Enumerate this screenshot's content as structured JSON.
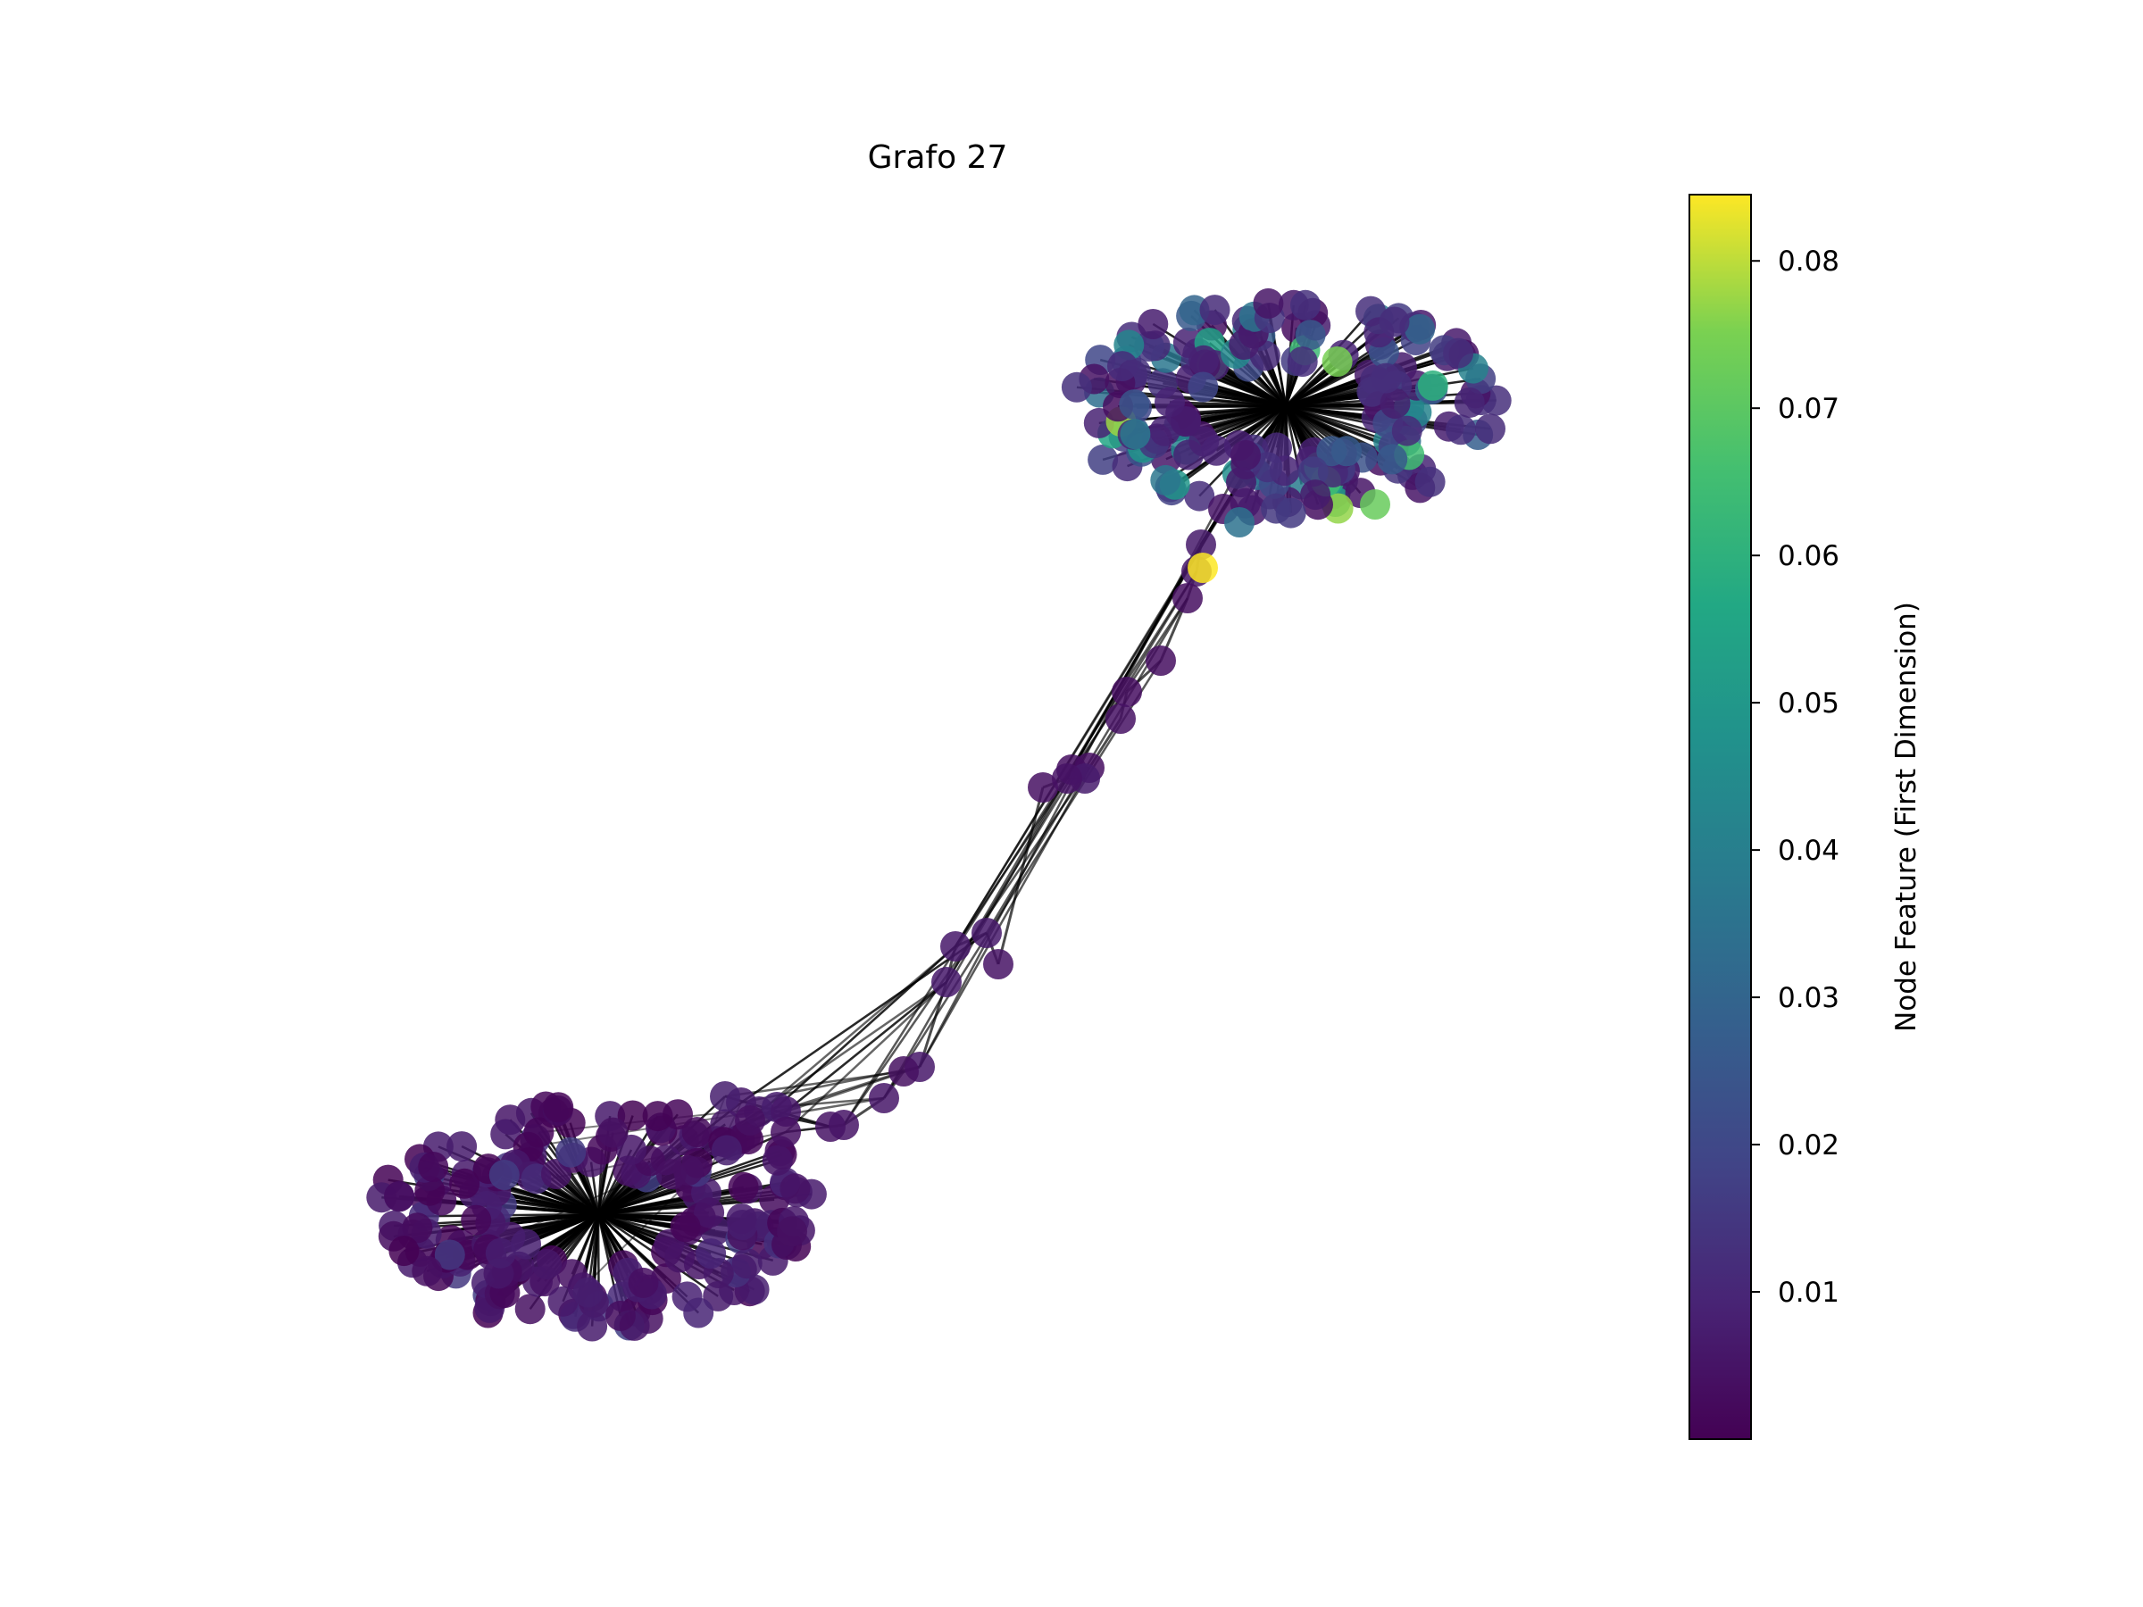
{
  "title": "Grafo 27",
  "colorbar": {
    "label": "Node Feature (First Dimension)",
    "colormap": "viridis",
    "range": [
      0.0,
      0.0845
    ],
    "ticks": [
      {
        "value": 0.01,
        "label": "0.01"
      },
      {
        "value": 0.02,
        "label": "0.02"
      },
      {
        "value": 0.03,
        "label": "0.03"
      },
      {
        "value": 0.04,
        "label": "0.04"
      },
      {
        "value": 0.05,
        "label": "0.05"
      },
      {
        "value": 0.06,
        "label": "0.06"
      },
      {
        "value": 0.07,
        "label": "0.07"
      },
      {
        "value": 0.08,
        "label": "0.08"
      }
    ]
  },
  "graph": {
    "node_color_min": "#440154",
    "node_color_max": "#fde725",
    "edge_color": "#000000",
    "clusters": [
      {
        "name": "upper-cluster",
        "approx_node_count": 190,
        "feature_range": [
          0.003,
          0.078
        ]
      },
      {
        "name": "lower-cluster",
        "approx_node_count": 200,
        "feature_range": [
          0.0,
          0.018
        ]
      }
    ],
    "bridge_node_count": 22,
    "max_feature_node_value": 0.0845
  }
}
